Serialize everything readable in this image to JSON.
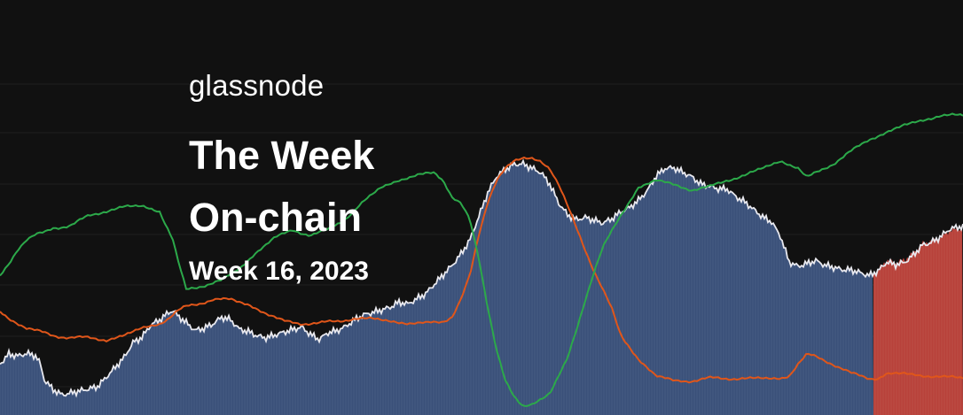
{
  "brand": {
    "name": "glassnode"
  },
  "title": {
    "line1": "The Week",
    "line2": "On-chain"
  },
  "subtitle": {
    "week": "Week 16, 2023"
  },
  "colors": {
    "background": "#111111",
    "price_area": "#3a5079",
    "price_area_recent": "#b8413a",
    "price_line": "#e8e8ee",
    "green_line": "#2ca94a",
    "orange_line": "#e0561a",
    "gridline": "#1f1f1f"
  },
  "chart_data": {
    "type": "area",
    "grid": true,
    "series": [
      {
        "key": "price",
        "style": "area",
        "x": [
          0,
          10,
          20,
          30,
          40,
          45,
          50,
          60,
          70,
          80,
          90,
          100,
          110,
          120,
          130,
          140,
          150,
          160,
          170,
          180,
          190,
          195,
          200,
          210,
          220,
          230,
          240,
          250,
          260,
          270,
          280,
          290,
          300,
          310,
          320,
          330,
          340,
          350,
          360,
          370,
          380,
          390,
          400,
          410,
          420,
          430,
          440,
          450,
          460,
          470,
          480,
          490,
          500,
          510,
          520,
          530,
          540,
          550,
          560,
          570,
          580,
          590,
          600,
          610,
          620,
          630,
          640,
          650,
          660,
          670,
          680,
          690,
          700,
          710,
          720,
          730,
          740,
          750,
          760,
          770,
          780,
          790,
          800,
          810,
          820,
          830,
          840,
          850,
          860,
          870,
          880,
          890,
          900,
          910,
          920,
          930,
          940,
          950,
          960,
          970,
          980,
          990,
          1000,
          1010,
          1020,
          1030,
          1040,
          1050,
          1060,
          1070,
          1080
        ],
        "y": [
          0.18,
          0.22,
          0.21,
          0.22,
          0.21,
          0.18,
          0.11,
          0.07,
          0.05,
          0.06,
          0.07,
          0.08,
          0.09,
          0.13,
          0.17,
          0.21,
          0.27,
          0.29,
          0.34,
          0.36,
          0.39,
          0.4,
          0.38,
          0.35,
          0.32,
          0.33,
          0.35,
          0.38,
          0.37,
          0.33,
          0.32,
          0.3,
          0.29,
          0.3,
          0.31,
          0.32,
          0.33,
          0.3,
          0.28,
          0.31,
          0.32,
          0.34,
          0.37,
          0.39,
          0.4,
          0.41,
          0.42,
          0.44,
          0.43,
          0.45,
          0.47,
          0.51,
          0.55,
          0.59,
          0.64,
          0.7,
          0.8,
          0.9,
          0.97,
          1.0,
          1.02,
          1.02,
          1.0,
          0.98,
          0.93,
          0.85,
          0.8,
          0.78,
          0.79,
          0.78,
          0.77,
          0.79,
          0.82,
          0.84,
          0.87,
          0.91,
          0.97,
          1.0,
          1.0,
          0.98,
          0.96,
          0.93,
          0.92,
          0.91,
          0.91,
          0.88,
          0.86,
          0.83,
          0.8,
          0.78,
          0.72,
          0.61,
          0.59,
          0.6,
          0.61,
          0.59,
          0.58,
          0.57,
          0.57,
          0.56,
          0.55,
          0.57,
          0.61,
          0.6,
          0.61,
          0.64,
          0.68,
          0.69,
          0.71,
          0.74,
          0.75
        ]
      },
      {
        "key": "green",
        "style": "line",
        "x": [
          0,
          10,
          20,
          30,
          40,
          50,
          60,
          80,
          100,
          120,
          140,
          160,
          180,
          195,
          200,
          210,
          230,
          250,
          270,
          290,
          310,
          330,
          350,
          370,
          390,
          410,
          430,
          450,
          470,
          490,
          500,
          510,
          520,
          530,
          540,
          550,
          560,
          570,
          580,
          590,
          600,
          620,
          640,
          650,
          660,
          670,
          680,
          700,
          720,
          740,
          760,
          780,
          800,
          820,
          840,
          860,
          880,
          900,
          910,
          920,
          940,
          960,
          980,
          1000,
          1020,
          1040,
          1060,
          1080
        ],
        "y": [
          0.55,
          0.6,
          0.66,
          0.7,
          0.72,
          0.73,
          0.75,
          0.76,
          0.8,
          0.82,
          0.84,
          0.84,
          0.82,
          0.7,
          0.62,
          0.49,
          0.51,
          0.53,
          0.58,
          0.65,
          0.71,
          0.74,
          0.72,
          0.74,
          0.79,
          0.86,
          0.92,
          0.95,
          0.97,
          0.98,
          0.95,
          0.88,
          0.85,
          0.78,
          0.62,
          0.42,
          0.24,
          0.11,
          0.04,
          0.0,
          0.01,
          0.06,
          0.2,
          0.32,
          0.45,
          0.57,
          0.67,
          0.8,
          0.92,
          0.95,
          0.93,
          0.91,
          0.92,
          0.95,
          0.97,
          1.0,
          1.03,
          1.0,
          0.96,
          0.98,
          1.02,
          1.07,
          1.12,
          1.15,
          1.18,
          1.2,
          1.22,
          1.22
        ]
      },
      {
        "key": "orange",
        "style": "line",
        "x": [
          0,
          10,
          20,
          30,
          40,
          50,
          60,
          80,
          100,
          120,
          140,
          160,
          180,
          190,
          200,
          210,
          220,
          230,
          240,
          260,
          280,
          290,
          300,
          320,
          340,
          360,
          380,
          400,
          420,
          440,
          460,
          480,
          500,
          510,
          520,
          530,
          540,
          550,
          560,
          570,
          580,
          590,
          600,
          610,
          620,
          630,
          640,
          650,
          660,
          670,
          680,
          690,
          700,
          720,
          740,
          760,
          780,
          800,
          820,
          840,
          860,
          880,
          890,
          900,
          910,
          920,
          940,
          960,
          980,
          990,
          1000,
          1020,
          1040,
          1060,
          1080
        ],
        "y": [
          0.4,
          0.37,
          0.35,
          0.33,
          0.32,
          0.31,
          0.3,
          0.29,
          0.29,
          0.28,
          0.3,
          0.33,
          0.35,
          0.37,
          0.4,
          0.42,
          0.43,
          0.44,
          0.45,
          0.45,
          0.43,
          0.41,
          0.39,
          0.36,
          0.35,
          0.35,
          0.36,
          0.37,
          0.37,
          0.36,
          0.35,
          0.35,
          0.36,
          0.38,
          0.45,
          0.55,
          0.72,
          0.86,
          0.95,
          1.0,
          1.03,
          1.04,
          1.04,
          1.03,
          1.0,
          0.93,
          0.84,
          0.75,
          0.66,
          0.57,
          0.49,
          0.41,
          0.3,
          0.2,
          0.13,
          0.11,
          0.11,
          0.12,
          0.12,
          0.12,
          0.12,
          0.12,
          0.13,
          0.18,
          0.22,
          0.21,
          0.18,
          0.14,
          0.12,
          0.12,
          0.14,
          0.14,
          0.13,
          0.13,
          0.12
        ]
      }
    ],
    "highlight_region": {
      "start_x": 985,
      "end_x": 1086
    }
  }
}
